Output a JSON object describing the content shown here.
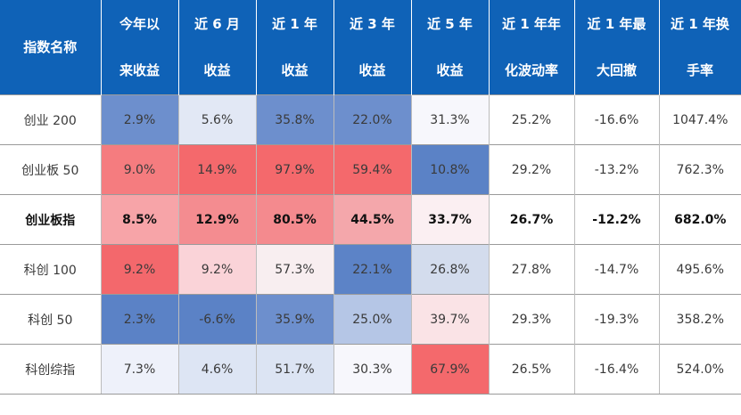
{
  "chart_data": {
    "type": "table",
    "headers": [
      [
        "指数名称"
      ],
      [
        "今年以",
        "来收益"
      ],
      [
        "近 6 月",
        "收益"
      ],
      [
        "近 1 年",
        "收益"
      ],
      [
        "近 3 年",
        "收益"
      ],
      [
        "近 5 年",
        "收益"
      ],
      [
        "近 1 年年",
        "化波动率"
      ],
      [
        "近 1 年最",
        "大回撤"
      ],
      [
        "近 1 年换",
        "手率"
      ]
    ],
    "rows": [
      {
        "name": "创业 200",
        "bold": false,
        "cells": [
          "2.9%",
          "5.6%",
          "35.8%",
          "22.0%",
          "31.3%",
          "25.2%",
          "-16.6%",
          "1047.4%"
        ],
        "colors": [
          "#6d8fcd",
          "#e2e8f5",
          "#6d8fcd",
          "#6d8fcd",
          "#f7f7fc",
          "#ffffff",
          "#ffffff",
          "#ffffff"
        ]
      },
      {
        "name": "创业板 50",
        "bold": false,
        "cells": [
          "9.0%",
          "14.9%",
          "97.9%",
          "59.4%",
          "10.8%",
          "29.2%",
          "-13.2%",
          "762.3%"
        ],
        "colors": [
          "#f57c7f",
          "#f4696c",
          "#f4696c",
          "#f4696c",
          "#5b82c6",
          "#ffffff",
          "#ffffff",
          "#ffffff"
        ]
      },
      {
        "name": "创业板指",
        "bold": true,
        "cells": [
          "8.5%",
          "12.9%",
          "80.5%",
          "44.5%",
          "33.7%",
          "26.7%",
          "-12.2%",
          "682.0%"
        ],
        "colors": [
          "#f7a4a8",
          "#f48c90",
          "#f48a8e",
          "#f4a7ab",
          "#fbeff2",
          "#ffffff",
          "#ffffff",
          "#ffffff"
        ]
      },
      {
        "name": "科创 100",
        "bold": false,
        "cells": [
          "9.2%",
          "9.2%",
          "57.3%",
          "22.1%",
          "26.8%",
          "27.8%",
          "-14.7%",
          "495.6%"
        ],
        "colors": [
          "#f3686c",
          "#fad3d8",
          "#f8eef0",
          "#5c83c7",
          "#d3dced",
          "#ffffff",
          "#ffffff",
          "#ffffff"
        ]
      },
      {
        "name": "科创 50",
        "bold": false,
        "cells": [
          "2.3%",
          "-6.6%",
          "35.9%",
          "25.0%",
          "39.7%",
          "29.3%",
          "-19.3%",
          "358.2%"
        ],
        "colors": [
          "#5b82c6",
          "#5b82c6",
          "#6d8fcd",
          "#b5c6e6",
          "#fae3e6",
          "#ffffff",
          "#ffffff",
          "#ffffff"
        ]
      },
      {
        "name": "科创综指",
        "bold": false,
        "cells": [
          "7.3%",
          "4.6%",
          "51.7%",
          "30.3%",
          "67.9%",
          "26.5%",
          "-16.4%",
          "524.0%"
        ],
        "colors": [
          "#eef1fa",
          "#dde5f4",
          "#dce4f3",
          "#f7f7fc",
          "#f4696c",
          "#ffffff",
          "#ffffff",
          "#ffffff"
        ]
      }
    ]
  }
}
